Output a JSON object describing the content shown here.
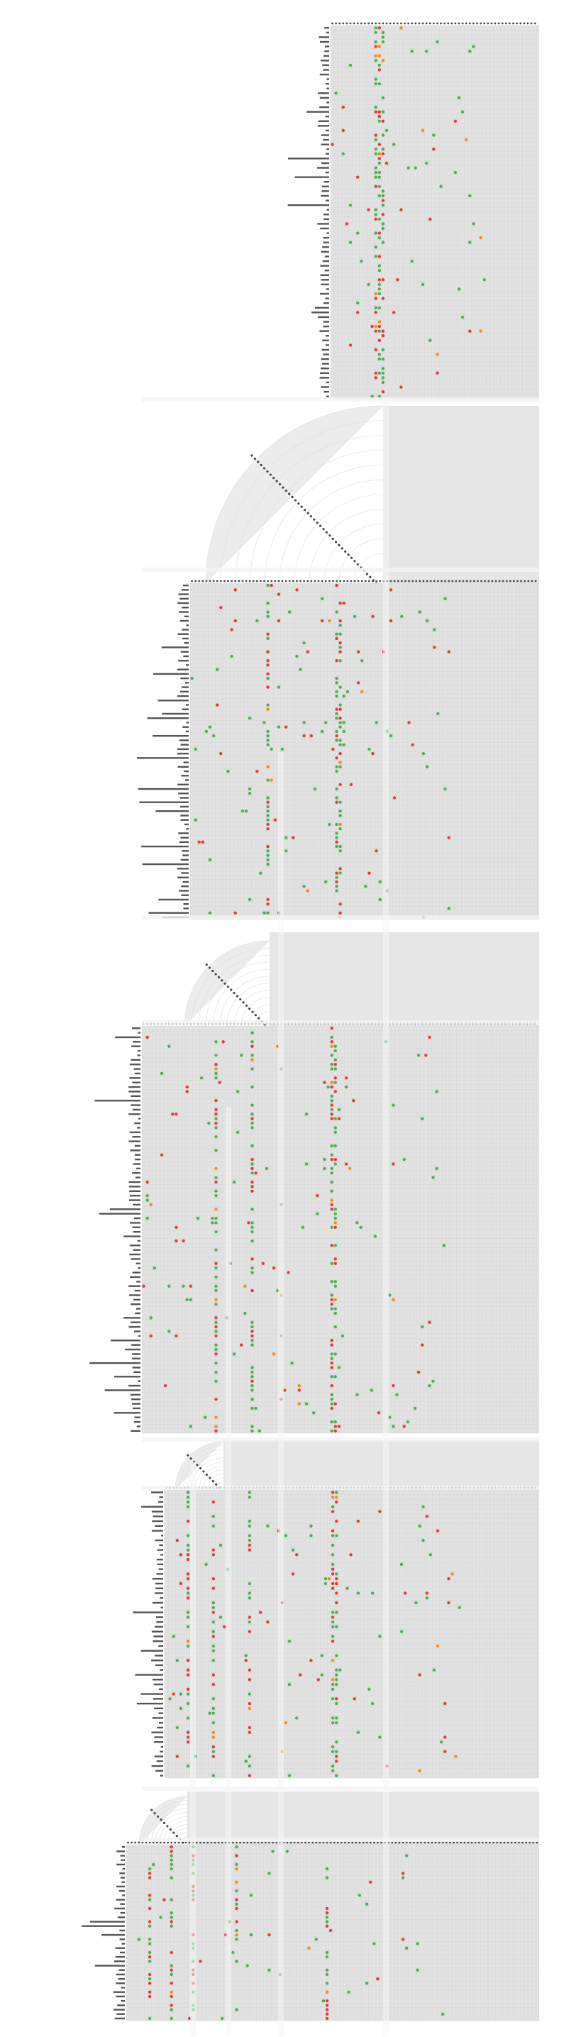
{
  "chart_data": {
    "type": "scatter",
    "title": "",
    "xlabel": "",
    "ylabel": "",
    "grid": true,
    "legend": "none",
    "colors": {
      "green": "#4caf50",
      "red": "#e53935",
      "orange": "#fb8c00",
      "grid_background": "#e2e2e2",
      "bars": "#555555",
      "arc": "#ececec"
    },
    "series_colors": [
      "green",
      "red",
      "orange"
    ],
    "blocks": [
      {
        "rows": 80,
        "cols": 44,
        "seed": 11,
        "density": 0.055,
        "hot_cols": [
          12,
          13,
          14
        ]
      },
      {
        "rows": 76,
        "cols": 72,
        "seed": 23,
        "density": 0.05,
        "hot_cols": [
          21,
          40,
          41
        ]
      },
      {
        "rows": 90,
        "cols": 84,
        "seed": 37,
        "density": 0.05,
        "hot_cols": [
          20,
          30,
          52,
          53
        ]
      },
      {
        "rows": 60,
        "cols": 82,
        "seed": 41,
        "density": 0.05,
        "hot_cols": [
          6,
          13,
          23,
          46,
          47
        ]
      },
      {
        "rows": 40,
        "cols": 90,
        "seed": 53,
        "density": 0.05,
        "hot_cols": [
          6,
          12,
          18,
          30,
          55
        ]
      }
    ]
  }
}
